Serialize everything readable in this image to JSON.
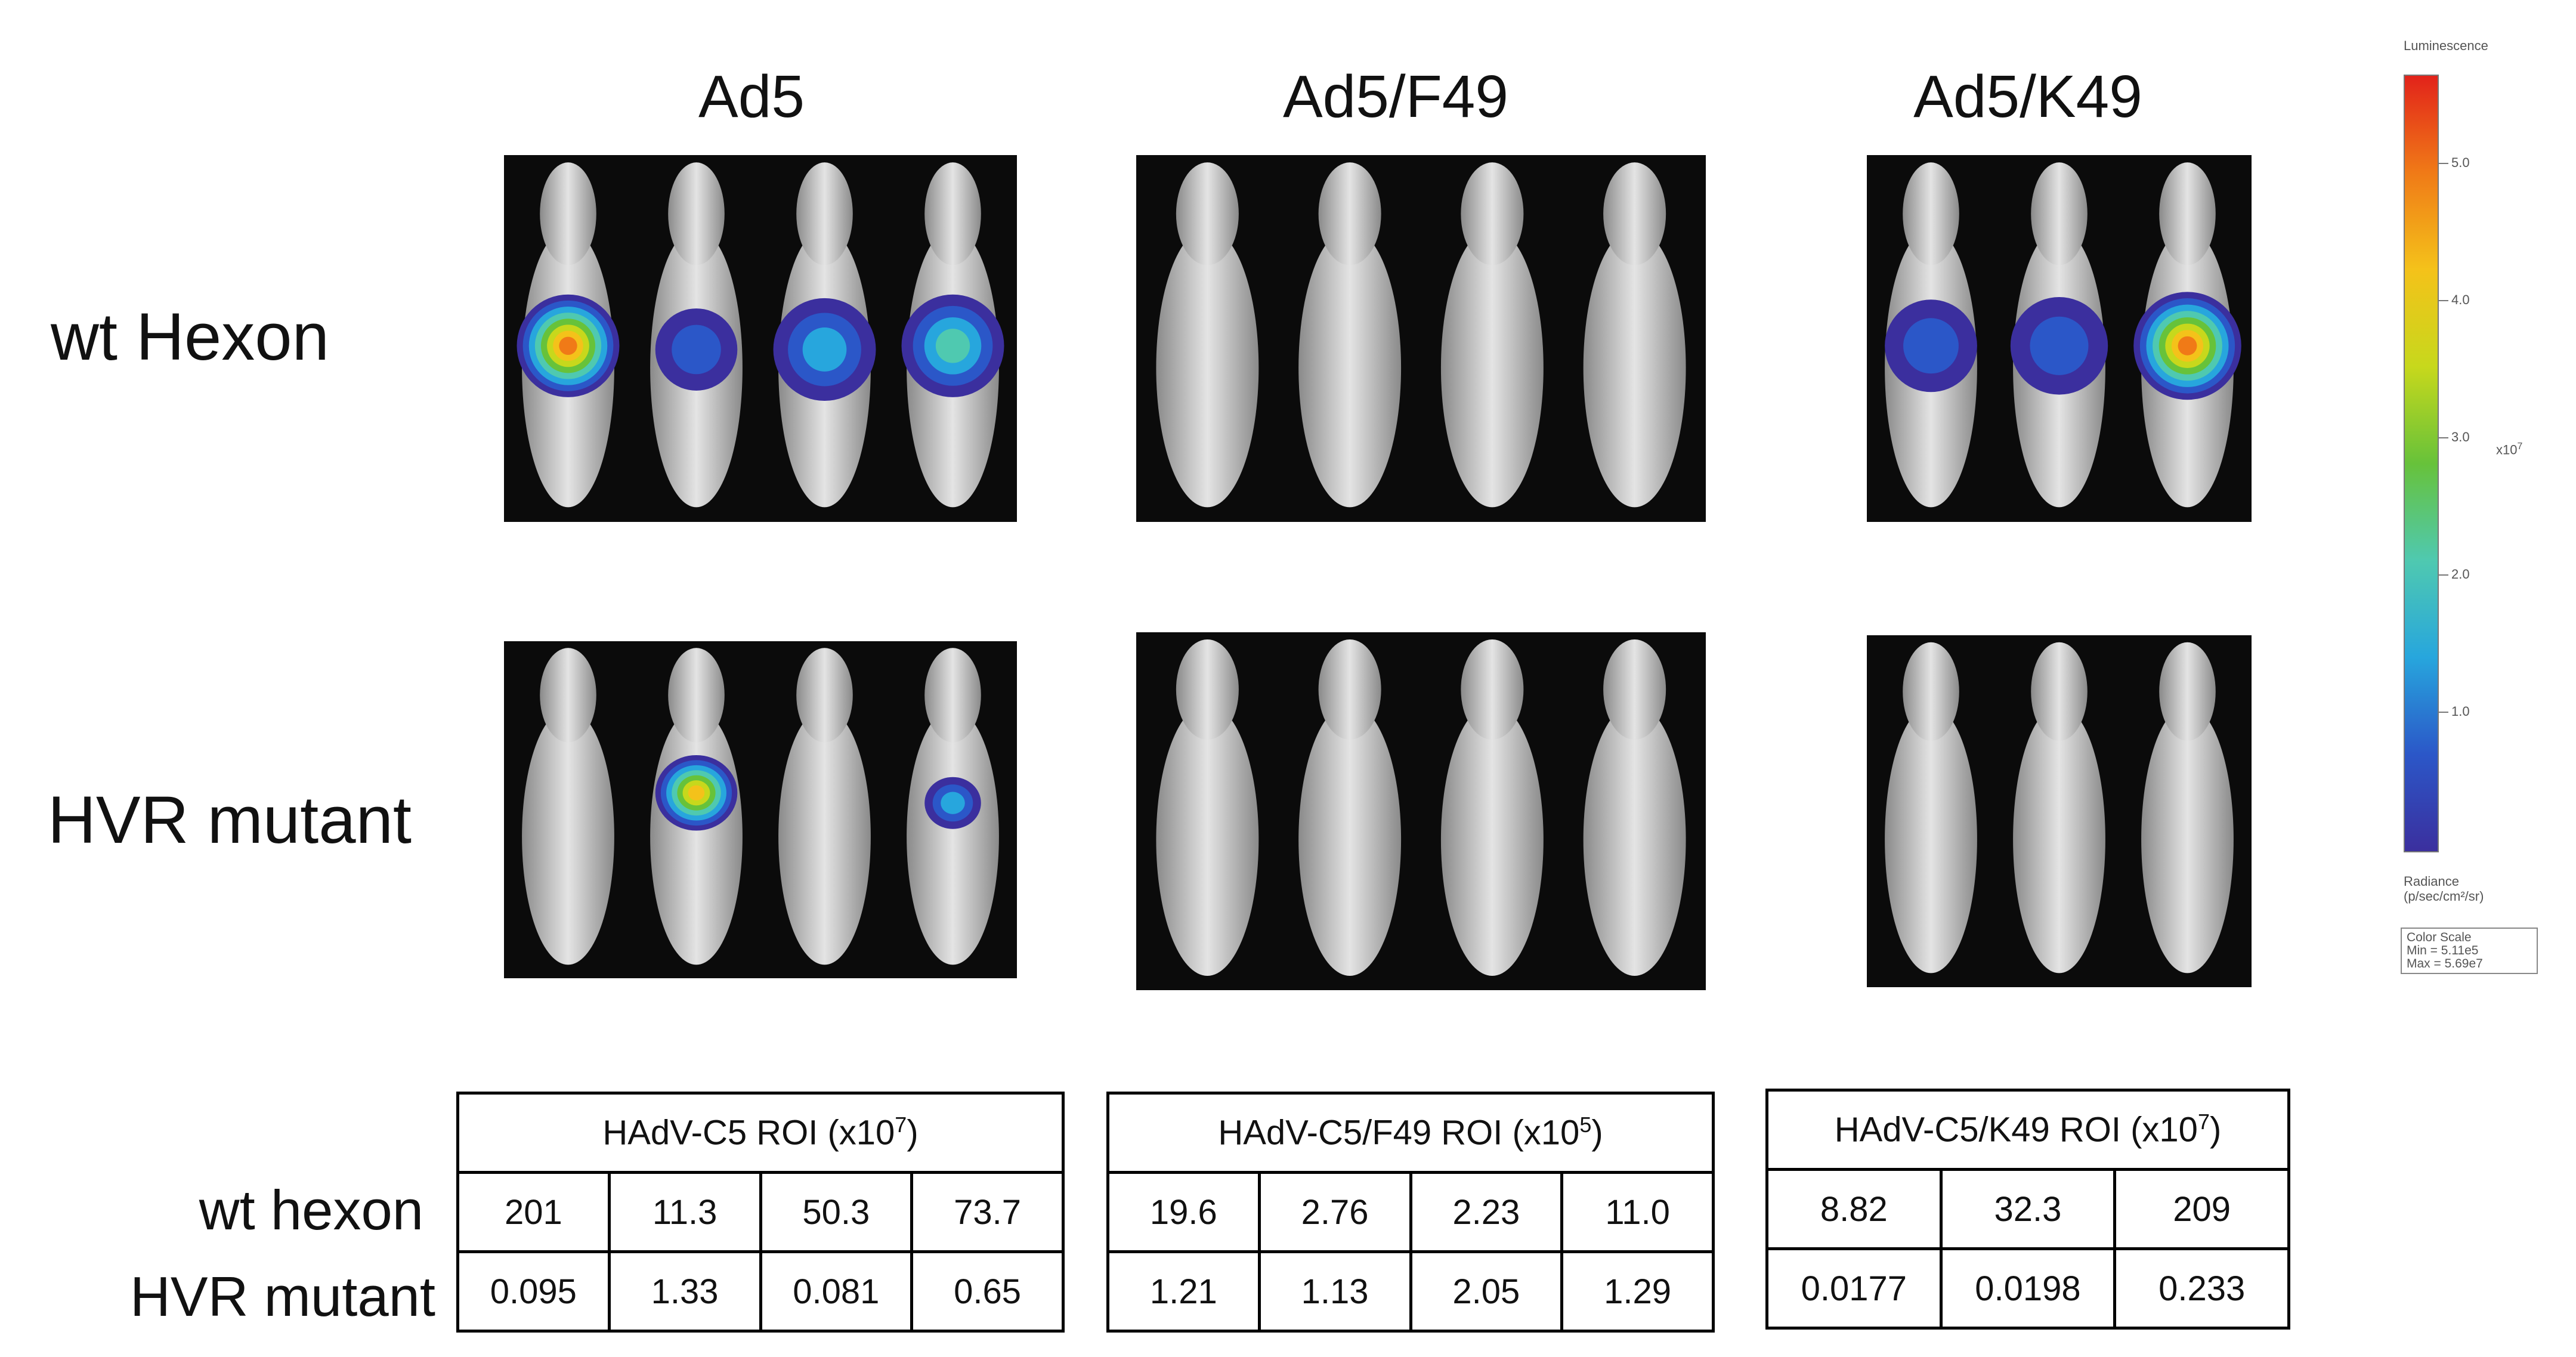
{
  "columns": [
    {
      "title": "Ad5"
    },
    {
      "title": "Ad5/F49"
    },
    {
      "title": "Ad5/K49"
    }
  ],
  "rows": [
    {
      "label": "wt Hexon"
    },
    {
      "label": "HVR mutant"
    }
  ],
  "colorbar": {
    "title": "Luminescence",
    "ticks": [
      "5.0",
      "4.0",
      "3.0",
      "2.0",
      "1.0"
    ],
    "multiplier": "x10",
    "multiplier_exp": "7",
    "radiance_label": "Radiance",
    "radiance_units": "(p/sec/cm²/sr)",
    "color_scale_label": "Color Scale",
    "min_label": "Min = 5.11e5",
    "max_label": "Max = 5.69e7",
    "gradient_colors": [
      "#3b2f9e",
      "#2b57c8",
      "#27a6dd",
      "#4fc9b0",
      "#67c23a",
      "#c7d81c",
      "#f4c21a",
      "#f07a17",
      "#e2231a"
    ]
  },
  "tables": {
    "row_labels": [
      "wt hexon",
      "HVR mutant"
    ],
    "roi": [
      {
        "header": "HAdV-C5 ROI (x10",
        "header_exp": "7",
        "header_tail": ")",
        "rows": [
          [
            "201",
            "11.3",
            "50.3",
            "73.7"
          ],
          [
            "0.095",
            "1.33",
            "0.081",
            "0.65"
          ]
        ]
      },
      {
        "header": "HAdV-C5/F49 ROI (x10",
        "header_exp": "5",
        "header_tail": ")",
        "rows": [
          [
            "19.6",
            "2.76",
            "2.23",
            "11.0"
          ],
          [
            "1.21",
            "1.13",
            "2.05",
            "1.29"
          ]
        ]
      },
      {
        "header": "HAdV-C5/K49 ROI (x10",
        "header_exp": "7",
        "header_tail": ")",
        "rows": [
          [
            "8.82",
            "32.3",
            "209"
          ],
          [
            "0.0177",
            "0.0198",
            "0.233"
          ]
        ]
      }
    ]
  }
}
